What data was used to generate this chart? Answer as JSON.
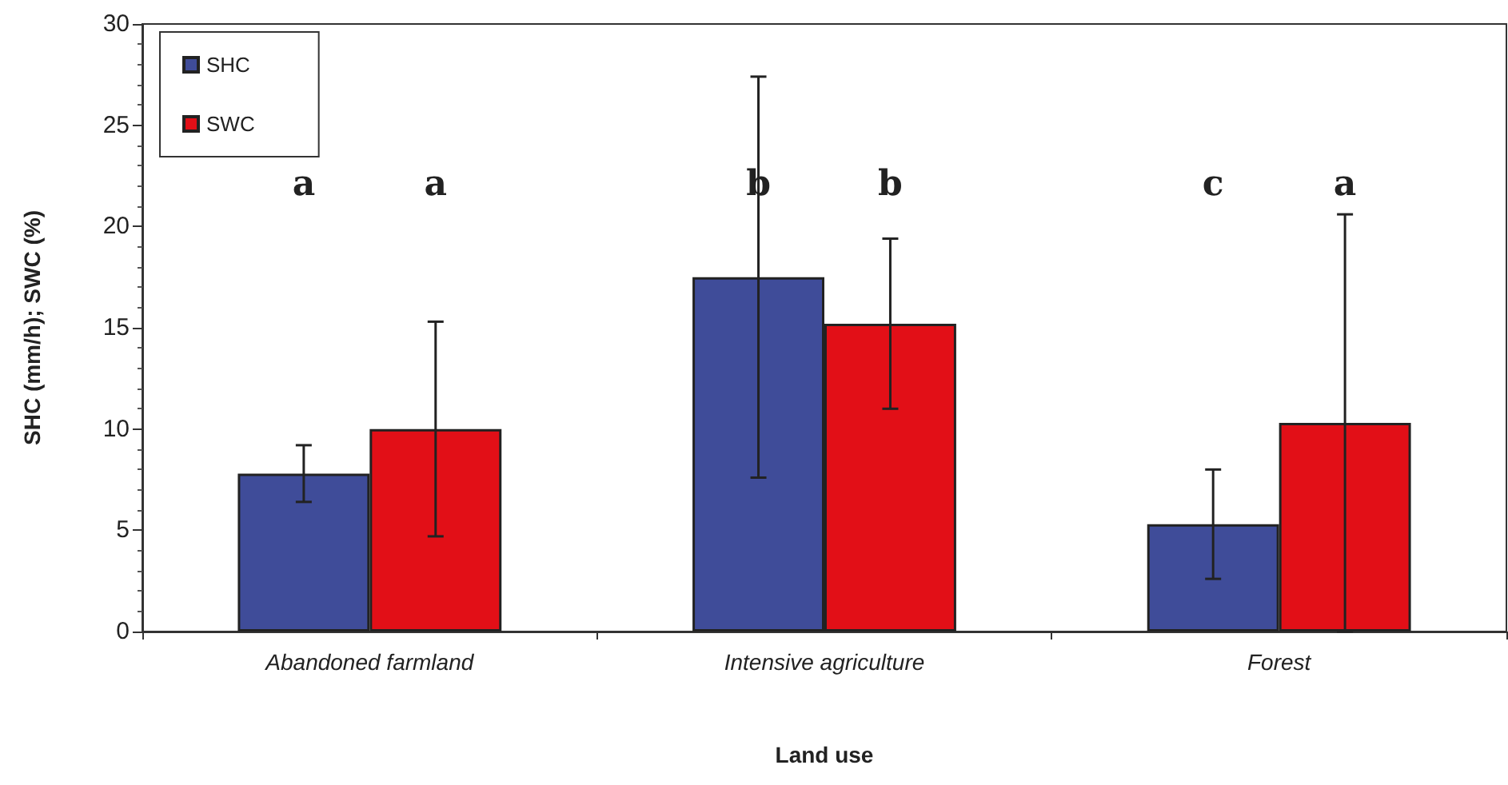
{
  "chart_data": {
    "type": "bar",
    "xlabel": "Land use",
    "ylabel": "SHC (mm/h); SWC (%)",
    "categories": [
      "Abandoned farmland",
      "Intensive agriculture",
      "Forest"
    ],
    "series": [
      {
        "name": "SHC",
        "color": "#3f4c99",
        "values": [
          7.8,
          17.5,
          5.3
        ],
        "errors": [
          1.4,
          9.9,
          2.7
        ]
      },
      {
        "name": "SWC",
        "color": "#e20f17",
        "values": [
          10.0,
          15.2,
          10.3
        ],
        "errors": [
          5.3,
          4.2,
          10.3
        ]
      }
    ],
    "ylim": [
      0,
      30
    ],
    "yticks": [
      0,
      5,
      10,
      15,
      20,
      25,
      30
    ],
    "grid": false,
    "legend": "top left",
    "annotations": [
      "a",
      "a",
      "b",
      "b",
      "c",
      "a"
    ]
  }
}
